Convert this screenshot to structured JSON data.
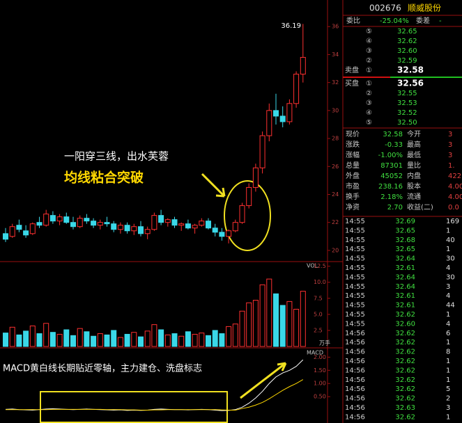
{
  "chart_data": [
    {
      "type": "candlestick",
      "up_color": "#ff3030",
      "down_color": "#3ad8e8",
      "annotations": [
        "一阳穿三线，出水芙蓉",
        "均线粘合突破"
      ],
      "ylim": [
        19.2,
        37.9
      ],
      "yticks": [
        20,
        22,
        24,
        26,
        28,
        30,
        32,
        34,
        36
      ],
      "open": [
        21.2,
        21.0,
        21.8,
        21.4,
        21.2,
        22.0,
        21.8,
        22.5,
        22.1,
        22.4,
        22.0,
        21.7,
        22.3,
        22.1,
        21.8,
        22.0,
        21.9,
        21.5,
        21.8,
        21.4,
        21.7,
        21.2,
        21.5,
        22.5,
        22.0,
        22.2,
        21.8,
        21.9,
        21.6,
        21.8,
        22.1,
        21.6,
        21.3,
        21.0,
        21.4,
        22.0,
        23.2,
        24.5,
        25.9,
        28.2,
        30.0,
        29.6,
        29.2,
        30.5,
        32.6
      ],
      "high": [
        21.6,
        21.9,
        22.2,
        21.8,
        22.0,
        22.4,
        22.9,
        22.8,
        22.6,
        22.7,
        22.4,
        22.5,
        22.6,
        22.3,
        22.2,
        22.4,
        22.1,
        22.0,
        22.0,
        21.9,
        22.1,
        21.7,
        22.7,
        22.9,
        22.3,
        22.4,
        22.0,
        22.2,
        21.9,
        22.3,
        22.3,
        21.9,
        21.6,
        21.5,
        22.2,
        23.4,
        24.8,
        26.2,
        28.5,
        30.5,
        31.2,
        30.3,
        30.8,
        32.8,
        36.19
      ],
      "low": [
        20.6,
        20.9,
        21.3,
        20.9,
        21.1,
        21.6,
        21.7,
        21.9,
        21.8,
        21.9,
        21.5,
        21.6,
        21.9,
        21.6,
        21.5,
        21.7,
        21.3,
        21.2,
        21.2,
        21.1,
        21.0,
        20.8,
        21.4,
        21.8,
        21.7,
        21.6,
        21.4,
        21.5,
        21.2,
        21.7,
        21.5,
        21.0,
        20.7,
        20.5,
        21.3,
        21.9,
        23.0,
        24.2,
        25.5,
        27.8,
        29.0,
        28.8,
        29.0,
        30.2,
        32.0
      ],
      "close": [
        20.8,
        21.7,
        21.5,
        21.1,
        21.9,
        21.8,
        22.6,
        22.1,
        22.4,
        22.0,
        21.7,
        22.3,
        22.1,
        21.8,
        22.0,
        21.9,
        21.5,
        21.8,
        21.4,
        21.7,
        21.2,
        21.5,
        22.5,
        22.0,
        22.2,
        21.8,
        21.9,
        21.6,
        21.8,
        22.1,
        21.6,
        21.3,
        21.0,
        21.4,
        22.0,
        23.2,
        24.5,
        25.9,
        28.2,
        30.0,
        29.6,
        29.2,
        30.5,
        32.6,
        33.8
      ]
    },
    {
      "type": "volume",
      "title": "VOL",
      "unit": "万手",
      "ylim": [
        0,
        13
      ],
      "yticks": [
        2.5,
        {
          "value": 5,
          "label": "5.0"
        },
        7.5,
        {
          "value": 10,
          "label": "10.0"
        },
        12.5
      ],
      "values": [
        2.1,
        3.0,
        1.8,
        2.4,
        3.2,
        2.0,
        3.6,
        2.2,
        1.9,
        2.6,
        1.7,
        2.8,
        2.3,
        1.6,
        2.0,
        1.8,
        2.5,
        1.4,
        1.9,
        2.2,
        1.5,
        2.4,
        3.4,
        2.6,
        1.8,
        2.0,
        1.6,
        2.3,
        1.9,
        2.1,
        1.7,
        2.5,
        2.0,
        3.1,
        3.5,
        5.5,
        6.8,
        7.2,
        9.6,
        10.5,
        8.2,
        6.4,
        7.0,
        5.8,
        8.6
      ]
    },
    {
      "type": "macd",
      "title": "MACD",
      "annotation": "MACD黄白线长期贴近零轴，主力建仓、洗盘标志",
      "ylim": [
        -0.5,
        2.3
      ],
      "yticks": [
        {
          "value": 0.5,
          "label": "0.50"
        },
        {
          "value": 1,
          "label": "1.00"
        },
        {
          "value": 1.5,
          "label": "1.50"
        },
        {
          "value": 2,
          "label": "2.00"
        }
      ],
      "series": [
        {
          "color": "#ffffff",
          "values": [
            0.02,
            0.03,
            0.01,
            0,
            -0.01,
            0.01,
            0.03,
            0.04,
            0.03,
            0.02,
            0.01,
            0.02,
            0.03,
            0.02,
            0.01,
            0,
            -0.01,
            0,
            -0.02,
            -0.01,
            -0.02,
            -0.01,
            0.02,
            0.03,
            0.02,
            0.01,
            0.01,
            0,
            0.01,
            0.02,
            0.01,
            -0.01,
            -0.03,
            -0.02,
            0.01,
            0.1,
            0.25,
            0.45,
            0.7,
            1.0,
            1.25,
            1.4,
            1.5,
            1.65,
            1.9
          ]
        },
        {
          "color": "#ffd800",
          "values": [
            0.01,
            0.01,
            0.01,
            0.01,
            0.01,
            0.01,
            0.01,
            0.02,
            0.02,
            0.02,
            0.02,
            0.02,
            0.02,
            0.02,
            0.02,
            0.01,
            0.01,
            0.01,
            0,
            0,
            -0.01,
            -0.01,
            0,
            0,
            0.01,
            0.01,
            0.01,
            0.01,
            0.01,
            0.01,
            0.01,
            0.01,
            0,
            -0.01,
            -0.01,
            0.05,
            0.1,
            0.18,
            0.28,
            0.42,
            0.58,
            0.74,
            0.88,
            1.0,
            1.15
          ]
        }
      ]
    }
  ],
  "quote": {
    "code": "002676",
    "name": "顺威股份",
    "ratio_label": "委比",
    "ratio": "-25.04%",
    "diff_label": "委差",
    "diff": "-",
    "ask_label": "卖盘",
    "bid_label": "买盘",
    "asks": [
      [
        "⑤",
        "32.65"
      ],
      [
        "④",
        "32.62"
      ],
      [
        "③",
        "32.60"
      ],
      [
        "②",
        "32.59"
      ],
      [
        "①",
        "32.58"
      ]
    ],
    "bids": [
      [
        "①",
        "32.56"
      ],
      [
        "②",
        "32.55"
      ],
      [
        "③",
        "32.53"
      ],
      [
        "④",
        "32.52"
      ],
      [
        "⑤",
        "32.50"
      ]
    ],
    "stats": [
      [
        "现价",
        "32.58",
        "今开",
        "3"
      ],
      [
        "涨跌",
        "-0.33",
        "最高",
        "3"
      ],
      [
        "涨幅",
        "-1.00%",
        "最低",
        "3"
      ],
      [
        "总量",
        "87301",
        "量比",
        "1."
      ],
      [
        "外盘",
        "45052",
        "内盘",
        "422"
      ],
      [
        "市盈",
        "238.16",
        "股本",
        "4.00"
      ],
      [
        "换手",
        "2.18%",
        "流通",
        "4.00"
      ],
      [
        "净资",
        "2.70",
        "收益(二)",
        "0.0"
      ]
    ],
    "ticks": [
      [
        "14:55",
        "32.69",
        "169"
      ],
      [
        "14:55",
        "32.65",
        "1"
      ],
      [
        "14:55",
        "32.68",
        "40"
      ],
      [
        "14:55",
        "32.65",
        "1"
      ],
      [
        "14:55",
        "32.64",
        "30"
      ],
      [
        "14:55",
        "32.61",
        "4"
      ],
      [
        "14:55",
        "32.64",
        "30"
      ],
      [
        "14:55",
        "32.64",
        "3"
      ],
      [
        "14:55",
        "32.61",
        "4"
      ],
      [
        "14:55",
        "32.61",
        "44"
      ],
      [
        "14:55",
        "32.62",
        "1"
      ],
      [
        "14:55",
        "32.60",
        "4"
      ],
      [
        "14:56",
        "32.62",
        "6"
      ],
      [
        "14:56",
        "32.62",
        "1"
      ],
      [
        "14:56",
        "32.62",
        "8"
      ],
      [
        "14:56",
        "32.62",
        "1"
      ],
      [
        "14:56",
        "32.62",
        "1"
      ],
      [
        "14:56",
        "32.62",
        "1"
      ],
      [
        "14:56",
        "32.62",
        "5"
      ],
      [
        "14:56",
        "32.62",
        "2"
      ],
      [
        "14:56",
        "32.63",
        "3"
      ],
      [
        "14:56",
        "32.62",
        "1"
      ]
    ]
  }
}
